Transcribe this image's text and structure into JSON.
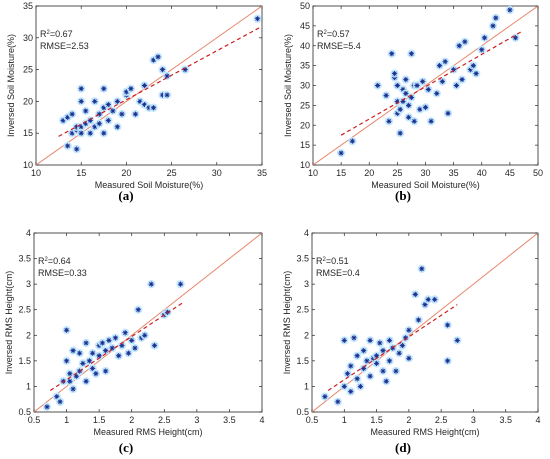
{
  "chart_data": [
    {
      "id": "a",
      "type": "scatter",
      "panel_label": "(a)",
      "xlabel": "Measured Soil Moisture(%)",
      "ylabel": "Inversed Soil Moisture(%)",
      "xlim": [
        10,
        35
      ],
      "ylim": [
        10,
        35
      ],
      "xticks": [
        10,
        15,
        20,
        25,
        30,
        35
      ],
      "yticks": [
        10,
        15,
        20,
        25,
        30,
        35
      ],
      "stats": {
        "r2_label": "R",
        "r2_value": "=0.67",
        "rmse": "RMSE=2.53"
      },
      "one_to_one": [
        [
          10,
          10
        ],
        [
          35,
          35
        ]
      ],
      "fit_line": [
        [
          12.5,
          14.5
        ],
        [
          35,
          31.8
        ]
      ],
      "points": [
        [
          13.0,
          17.0
        ],
        [
          13.5,
          13.0
        ],
        [
          13.5,
          17.5
        ],
        [
          14.0,
          18.0
        ],
        [
          14.0,
          15.0
        ],
        [
          14.5,
          15.5
        ],
        [
          14.5,
          12.5
        ],
        [
          14.5,
          16.0
        ],
        [
          15.0,
          22.0
        ],
        [
          15.0,
          16.0
        ],
        [
          15.0,
          20.0
        ],
        [
          15.0,
          15.0
        ],
        [
          15.5,
          18.5
        ],
        [
          15.5,
          16.5
        ],
        [
          16.0,
          17.0
        ],
        [
          16.0,
          15.0
        ],
        [
          16.5,
          20.0
        ],
        [
          16.5,
          16.0
        ],
        [
          17.0,
          18.0
        ],
        [
          17.0,
          16.5
        ],
        [
          17.5,
          22.0
        ],
        [
          17.5,
          15.0
        ],
        [
          17.5,
          19.0
        ],
        [
          18.0,
          17.0
        ],
        [
          18.0,
          19.5
        ],
        [
          18.5,
          18.5
        ],
        [
          19.0,
          20.0
        ],
        [
          19.0,
          16.0
        ],
        [
          19.5,
          18.0
        ],
        [
          20.0,
          21.0
        ],
        [
          20.0,
          21.5
        ],
        [
          20.5,
          22.0
        ],
        [
          21.0,
          18.0
        ],
        [
          21.5,
          20.0
        ],
        [
          22.0,
          22.5
        ],
        [
          22.0,
          19.5
        ],
        [
          22.5,
          19.0
        ],
        [
          23.0,
          26.5
        ],
        [
          23.0,
          19.0
        ],
        [
          23.5,
          27.0
        ],
        [
          24.0,
          25.0
        ],
        [
          24.0,
          21.0
        ],
        [
          24.5,
          24.0
        ],
        [
          24.5,
          21.0
        ],
        [
          26.5,
          25.0
        ],
        [
          34.5,
          33.0
        ]
      ]
    },
    {
      "id": "b",
      "type": "scatter",
      "panel_label": "(b)",
      "xlabel": "Measured Soil Moisture(%)",
      "ylabel": "Inversed Soil Moisture(%)",
      "xlim": [
        10,
        50
      ],
      "ylim": [
        10,
        50
      ],
      "xticks": [
        10,
        15,
        20,
        25,
        30,
        35,
        40,
        45,
        50
      ],
      "yticks": [
        10,
        15,
        20,
        25,
        30,
        35,
        40,
        45,
        50
      ],
      "stats": {
        "r2_label": "R",
        "r2_value": "=0.57",
        "rmse": "RMSE=5.4"
      },
      "one_to_one": [
        [
          10,
          10
        ],
        [
          50,
          50
        ]
      ],
      "fit_line": [
        [
          15,
          17.5
        ],
        [
          47,
          43.5
        ]
      ],
      "points": [
        [
          15.0,
          13.0
        ],
        [
          17.0,
          16.0
        ],
        [
          21.5,
          30.0
        ],
        [
          23.0,
          27.5
        ],
        [
          23.5,
          21.0
        ],
        [
          24.0,
          38.0
        ],
        [
          24.5,
          32.0
        ],
        [
          24.5,
          33.0
        ],
        [
          25.0,
          30.0
        ],
        [
          25.0,
          26.0
        ],
        [
          25.0,
          23.0
        ],
        [
          25.5,
          18.0
        ],
        [
          25.5,
          24.0
        ],
        [
          26.0,
          29.0
        ],
        [
          26.0,
          26.0
        ],
        [
          26.5,
          31.5
        ],
        [
          26.5,
          28.0
        ],
        [
          27.0,
          22.0
        ],
        [
          27.0,
          25.0
        ],
        [
          27.5,
          38.0
        ],
        [
          27.5,
          27.0
        ],
        [
          28.0,
          30.0
        ],
        [
          28.0,
          21.0
        ],
        [
          28.5,
          30.0
        ],
        [
          29.0,
          24.0
        ],
        [
          29.5,
          31.0
        ],
        [
          30.0,
          24.5
        ],
        [
          30.5,
          29.0
        ],
        [
          31.0,
          21.0
        ],
        [
          32.0,
          28.0
        ],
        [
          32.5,
          35.0
        ],
        [
          33.0,
          31.0
        ],
        [
          33.5,
          36.0
        ],
        [
          34.0,
          23.0
        ],
        [
          35.0,
          34.0
        ],
        [
          35.5,
          30.0
        ],
        [
          36.0,
          40.0
        ],
        [
          36.5,
          31.5
        ],
        [
          37.0,
          41.0
        ],
        [
          38.0,
          34.0
        ],
        [
          38.5,
          35.0
        ],
        [
          39.0,
          33.0
        ],
        [
          40.0,
          39.0
        ],
        [
          40.5,
          42.0
        ],
        [
          42.0,
          45.0
        ],
        [
          42.5,
          47.0
        ],
        [
          45.0,
          49.0
        ],
        [
          46.0,
          42.0
        ]
      ]
    },
    {
      "id": "c",
      "type": "scatter",
      "panel_label": "(c)",
      "xlabel": "Measured RMS Height(cm)",
      "ylabel": "Inversed RMS Height(cm)",
      "xlim": [
        0.5,
        4
      ],
      "ylim": [
        0.5,
        4
      ],
      "xticks": [
        0.5,
        1,
        1.5,
        2,
        2.5,
        3,
        3.5,
        4
      ],
      "yticks": [
        0.5,
        1,
        1.5,
        2,
        2.5,
        3,
        3.5,
        4
      ],
      "stats": {
        "r2_label": "R",
        "r2_value": "=0.64",
        "rmse": "RMSE=0.33"
      },
      "one_to_one": [
        [
          0.5,
          0.5
        ],
        [
          4,
          4
        ]
      ],
      "fit_line": [
        [
          0.75,
          0.92
        ],
        [
          2.8,
          2.65
        ]
      ],
      "points": [
        [
          0.7,
          0.6
        ],
        [
          0.85,
          0.8
        ],
        [
          0.9,
          0.7
        ],
        [
          0.95,
          1.1
        ],
        [
          1.0,
          2.1
        ],
        [
          1.0,
          1.5
        ],
        [
          1.05,
          1.1
        ],
        [
          1.05,
          1.25
        ],
        [
          1.1,
          1.7
        ],
        [
          1.1,
          0.95
        ],
        [
          1.15,
          1.2
        ],
        [
          1.2,
          1.65
        ],
        [
          1.2,
          1.3
        ],
        [
          1.25,
          1.45
        ],
        [
          1.3,
          1.85
        ],
        [
          1.3,
          1.1
        ],
        [
          1.35,
          1.5
        ],
        [
          1.4,
          1.65
        ],
        [
          1.4,
          1.35
        ],
        [
          1.45,
          1.25
        ],
        [
          1.5,
          1.8
        ],
        [
          1.5,
          1.6
        ],
        [
          1.55,
          1.85
        ],
        [
          1.6,
          1.7
        ],
        [
          1.6,
          1.3
        ],
        [
          1.65,
          1.9
        ],
        [
          1.7,
          1.75
        ],
        [
          1.75,
          1.95
        ],
        [
          1.8,
          1.6
        ],
        [
          1.85,
          1.8
        ],
        [
          1.9,
          2.05
        ],
        [
          1.95,
          1.65
        ],
        [
          2.0,
          1.9
        ],
        [
          2.05,
          1.75
        ],
        [
          2.1,
          2.5
        ],
        [
          2.15,
          1.95
        ],
        [
          2.2,
          2.0
        ],
        [
          2.3,
          3.0
        ],
        [
          2.35,
          1.8
        ],
        [
          2.5,
          2.4
        ],
        [
          2.55,
          2.45
        ],
        [
          2.75,
          3.0
        ]
      ]
    },
    {
      "id": "d",
      "type": "scatter",
      "panel_label": "(d)",
      "xlabel": "Measured RMS Height(cm)",
      "ylabel": "Inversed RMS Height(cm)",
      "xlim": [
        0.5,
        4
      ],
      "ylim": [
        0.5,
        4
      ],
      "xticks": [
        0.5,
        1,
        1.5,
        2,
        2.5,
        3,
        3.5,
        4
      ],
      "yticks": [
        0.5,
        1,
        1.5,
        2,
        2.5,
        3,
        3.5,
        4
      ],
      "stats": {
        "r2_label": "R",
        "r2_value": "=0.51",
        "rmse": "RMSE=0.4"
      },
      "one_to_one": [
        [
          0.5,
          0.5
        ],
        [
          4,
          4
        ]
      ],
      "fit_line": [
        [
          0.75,
          0.92
        ],
        [
          2.75,
          2.6
        ]
      ],
      "points": [
        [
          0.7,
          0.8
        ],
        [
          0.9,
          0.7
        ],
        [
          1.0,
          1.9
        ],
        [
          1.0,
          1.0
        ],
        [
          1.05,
          1.25
        ],
        [
          1.1,
          0.9
        ],
        [
          1.1,
          1.4
        ],
        [
          1.15,
          1.95
        ],
        [
          1.2,
          1.15
        ],
        [
          1.2,
          1.6
        ],
        [
          1.25,
          1.0
        ],
        [
          1.3,
          1.35
        ],
        [
          1.3,
          1.7
        ],
        [
          1.35,
          1.5
        ],
        [
          1.4,
          1.9
        ],
        [
          1.4,
          1.2
        ],
        [
          1.45,
          1.55
        ],
        [
          1.5,
          1.45
        ],
        [
          1.5,
          1.6
        ],
        [
          1.55,
          1.85
        ],
        [
          1.6,
          1.3
        ],
        [
          1.6,
          1.7
        ],
        [
          1.65,
          1.1
        ],
        [
          1.7,
          1.5
        ],
        [
          1.7,
          1.9
        ],
        [
          1.75,
          1.75
        ],
        [
          1.8,
          1.3
        ],
        [
          1.85,
          1.65
        ],
        [
          1.9,
          1.8
        ],
        [
          1.95,
          1.95
        ],
        [
          2.0,
          2.1
        ],
        [
          2.0,
          1.55
        ],
        [
          2.1,
          2.8
        ],
        [
          2.15,
          2.3
        ],
        [
          2.2,
          3.3
        ],
        [
          2.25,
          2.6
        ],
        [
          2.3,
          2.7
        ],
        [
          2.4,
          2.7
        ],
        [
          2.6,
          1.5
        ],
        [
          2.6,
          2.2
        ],
        [
          2.75,
          1.9
        ]
      ]
    }
  ],
  "colors": {
    "one_to_one": "#e8866b",
    "fit_line": "#cc1f1f",
    "marker": "#1a2f8f",
    "marker_halo": "#bfe6ff",
    "axis": "#262626"
  }
}
